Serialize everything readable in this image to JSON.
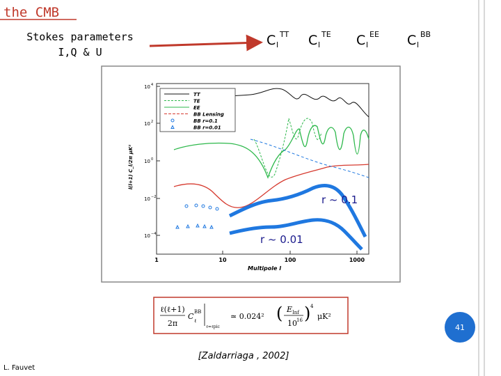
{
  "header": {
    "title": "the CMB"
  },
  "stokes": [
    "Stokes parameters",
    "I,Q & U"
  ],
  "spectra": [
    {
      "base": "C",
      "sub": "l",
      "sup": "TT"
    },
    {
      "base": "C",
      "sub": "l",
      "sup": "TE"
    },
    {
      "base": "C",
      "sub": "l",
      "sup": "EE"
    },
    {
      "base": "C",
      "sub": "l",
      "sup": "BB"
    }
  ],
  "figure": {
    "yticks": [
      {
        "base": "10",
        "exp": "4"
      },
      {
        "base": "10",
        "exp": "2"
      },
      {
        "base": "10",
        "exp": "0"
      },
      {
        "base": "10",
        "exp": "−2"
      },
      {
        "base": "10",
        "exp": "−4"
      }
    ],
    "xticks": [
      "1",
      "10",
      "100",
      "1000"
    ],
    "xlabel": "Multipole l",
    "ylabel": "l(l+1) C_l/2π μK²",
    "legend": [
      "TT",
      "TE",
      "EE",
      "BB Lensing",
      "BB r=0.1",
      "BB r=0.01"
    ],
    "annotations": [
      "r ~ 0.1",
      "r ~ 0.01"
    ]
  },
  "formula": {
    "lhs": "ℓ(ℓ+1)",
    "den": "2π",
    "cl": "C",
    "clsup": "BB",
    "clsub": "ℓ",
    "eval": "ℓ=ℓpic",
    "approx": "≃ 0.024²",
    "num": "E",
    "numsub": "Inf",
    "den2": "10",
    "den2sup": "16",
    "pow": "4",
    "unit": "μK²"
  },
  "page_number": "41",
  "citation": "[Zaldarriaga , 2002]",
  "author": "L. Fauvet"
}
